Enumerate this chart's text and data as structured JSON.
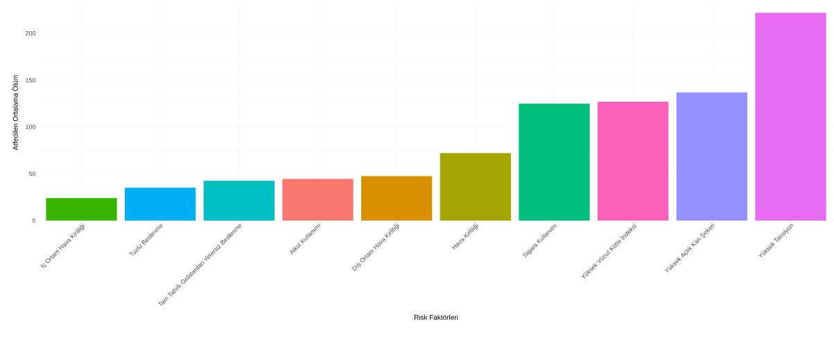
{
  "chart_data": {
    "type": "bar",
    "xlabel": "Risk Faktörleri",
    "ylabel": "Atfedilen Ortalama Ölüm",
    "categories": [
      "İç Ortam Hava Kirliliği",
      "Tuzlu Beslenme",
      "Tam Tahıllı Gıdalardan Yetersiz Beslenme",
      "Alkol Kullanımı",
      "Dış Ortam Hava Kirliliği",
      "Hava Kirliliği",
      "Sigara Kullanımı",
      "Yüksek Vücut Kütle İndeksi",
      "Yüksek Açlık Kan Şekeri",
      "Yüksek Tansiyon"
    ],
    "values": [
      24,
      35,
      42.5,
      44.5,
      47.5,
      72,
      125,
      127,
      137,
      222
    ],
    "colors": [
      "#39b600",
      "#00b0f6",
      "#00bfc4",
      "#f8766d",
      "#d89000",
      "#a3a500",
      "#00bf7d",
      "#ff62bc",
      "#9590ff",
      "#e76bf3"
    ],
    "ylim": [
      -1,
      232
    ],
    "yticks": [
      0,
      50,
      100,
      150,
      200
    ],
    "grid": true
  }
}
